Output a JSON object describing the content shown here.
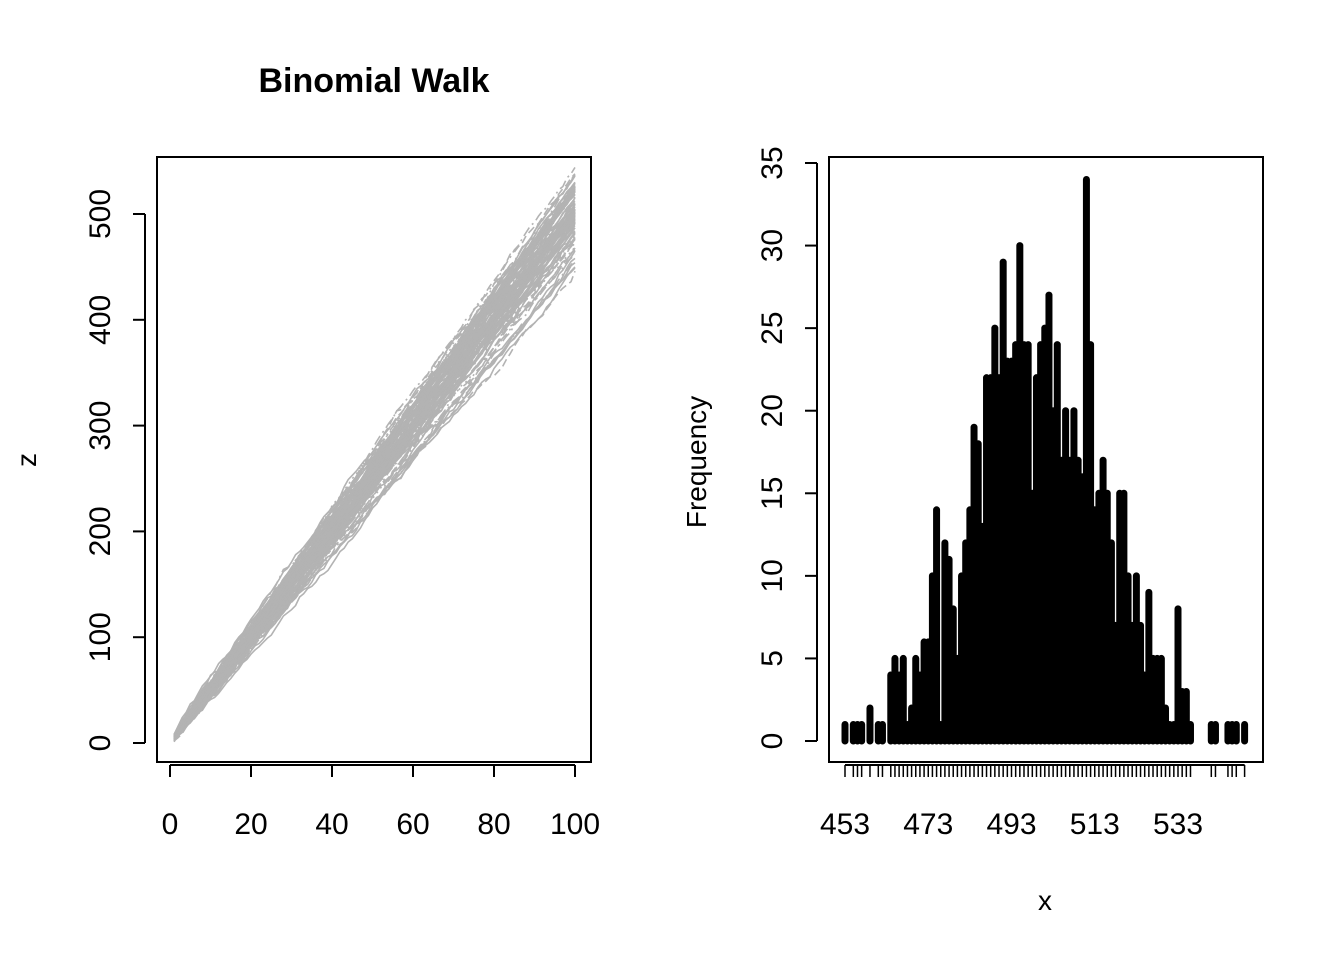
{
  "chart_data": [
    {
      "type": "line",
      "title": "Binomial Walk",
      "xlabel": "",
      "ylabel": "z",
      "xlim": [
        0,
        100
      ],
      "ylim": [
        0,
        530
      ],
      "x_ticks": [
        "0",
        "20",
        "40",
        "60",
        "80",
        "100"
      ],
      "y_ticks": [
        "0",
        "100",
        "200",
        "300",
        "400",
        "500"
      ],
      "series_count": 100,
      "x_range": [
        1,
        100
      ],
      "final_value_range": [
        455,
        532
      ],
      "line_color": "#b3b3b3",
      "grid": false
    },
    {
      "type": "bar",
      "title": "",
      "xlabel": "x",
      "ylabel": "Frequency",
      "ylim": [
        0,
        35
      ],
      "x_ticks": [
        "453",
        "473",
        "493",
        "513",
        "533"
      ],
      "y_ticks": [
        "0",
        "5",
        "10",
        "15",
        "20",
        "25",
        "30",
        "35"
      ],
      "bar_color": "#000000",
      "grid": false,
      "x": [
        453,
        455,
        456,
        457,
        459,
        461,
        462,
        464,
        465,
        466,
        467,
        468,
        469,
        470,
        471,
        472,
        473,
        474,
        475,
        476,
        477,
        478,
        479,
        480,
        481,
        482,
        483,
        484,
        485,
        486,
        487,
        488,
        489,
        490,
        491,
        492,
        493,
        494,
        495,
        496,
        497,
        498,
        499,
        500,
        501,
        502,
        503,
        504,
        505,
        506,
        507,
        508,
        509,
        510,
        511,
        512,
        513,
        514,
        515,
        516,
        517,
        518,
        519,
        520,
        521,
        522,
        523,
        524,
        525,
        526,
        527,
        528,
        529,
        530,
        531,
        532,
        533,
        534,
        535,
        536,
        541,
        542,
        545,
        546,
        547,
        549
      ],
      "values": [
        1,
        1,
        1,
        1,
        2,
        1,
        1,
        4,
        5,
        4,
        5,
        1,
        2,
        5,
        4,
        6,
        6,
        10,
        14,
        1,
        12,
        11,
        8,
        5,
        10,
        12,
        14,
        19,
        18,
        13,
        22,
        22,
        25,
        22,
        29,
        23,
        23,
        24,
        30,
        24,
        24,
        15,
        22,
        24,
        25,
        27,
        20,
        24,
        17,
        20,
        17,
        20,
        17,
        16,
        34,
        24,
        14,
        15,
        17,
        15,
        12,
        7,
        15,
        15,
        10,
        7,
        10,
        7,
        4,
        9,
        5,
        5,
        5,
        2,
        1,
        1,
        8,
        3,
        3,
        1,
        1,
        1,
        1,
        1,
        1,
        1
      ]
    }
  ]
}
